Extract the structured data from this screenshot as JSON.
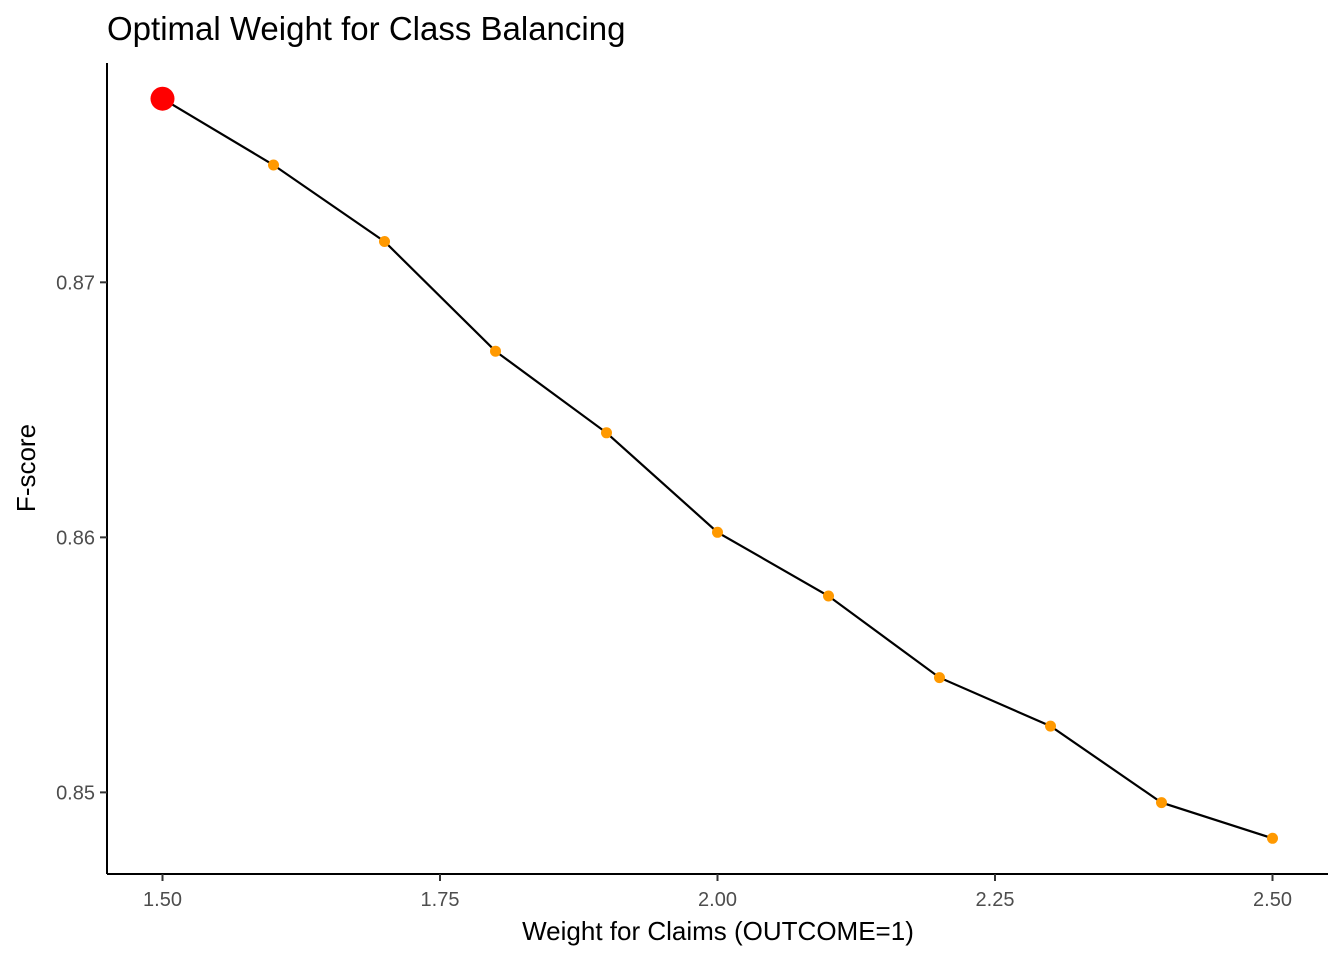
{
  "chart_data": {
    "type": "line",
    "title": "Optimal Weight for Class Balancing",
    "xlabel": "Weight for Claims (OUTCOME=1)",
    "ylabel": "F-score",
    "x": [
      1.5,
      1.6,
      1.7,
      1.8,
      1.9,
      2.0,
      2.1,
      2.2,
      2.3,
      2.4,
      2.5
    ],
    "series": [
      {
        "values": [
          0.8772,
          0.8746,
          0.8716,
          0.8673,
          0.8641,
          0.8602,
          0.8577,
          0.8545,
          0.8526,
          0.8496,
          0.8482
        ]
      }
    ],
    "highlight": {
      "x": 1.5,
      "y": 0.8772,
      "color": "#ff0000"
    },
    "xlim": [
      1.45,
      2.55
    ],
    "ylim": [
      0.8468,
      0.8786
    ],
    "x_ticks": [
      1.5,
      1.75,
      2.0,
      2.25,
      2.5
    ],
    "x_tick_labels": [
      "1.50",
      "1.75",
      "2.00",
      "2.25",
      "2.50"
    ],
    "y_ticks": [
      0.85,
      0.86,
      0.87
    ],
    "y_tick_labels": [
      "0.85",
      "0.86",
      "0.87"
    ],
    "grid": false,
    "line_color": "#000000",
    "point_color": "#ff9900"
  }
}
